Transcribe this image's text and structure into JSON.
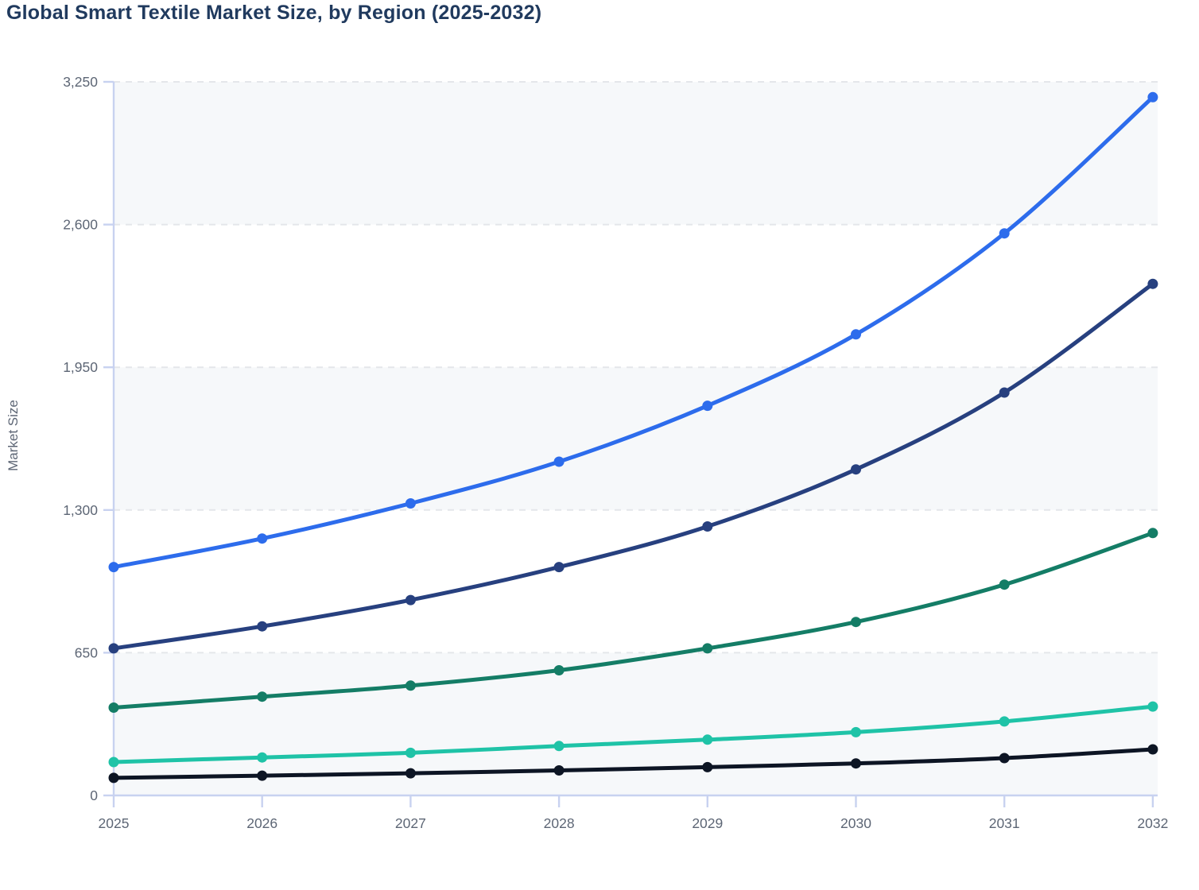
{
  "chart": {
    "title": "Global Smart Textile Market Size, by Region (2025-2032)",
    "y_axis_title": "Market Size"
  },
  "chart_data": {
    "type": "line",
    "title": "Global Smart Textile Market Size, by Region (2025-2032)",
    "xlabel": "",
    "ylabel": "Market Size",
    "x": [
      2025,
      2026,
      2027,
      2028,
      2029,
      2030,
      2031,
      2032
    ],
    "x_tick_labels": [
      "2025",
      "2026",
      "2027",
      "2028",
      "2029",
      "2030",
      "2031",
      "2032"
    ],
    "y_ticks": [
      0,
      650,
      1300,
      1950,
      2600,
      3250
    ],
    "y_tick_labels": [
      "0",
      "650",
      "1,300",
      "1,950",
      "2,600",
      "3,250"
    ],
    "ylim": [
      0,
      3250
    ],
    "grid": "horizontal dashed gridlines at each y tick",
    "legend_position": "none visible",
    "alternating_shaded_bands": [
      [
        0,
        650
      ],
      [
        1300,
        1950
      ],
      [
        2600,
        3250
      ]
    ],
    "series": [
      {
        "name": "series-1-bright-blue",
        "color": "#2d6cec",
        "values": [
          1040,
          1170,
          1330,
          1520,
          1775,
          2100,
          2560,
          3180
        ]
      },
      {
        "name": "series-2-navy",
        "color": "#27407f",
        "values": [
          670,
          770,
          890,
          1040,
          1225,
          1485,
          1835,
          2330
        ]
      },
      {
        "name": "series-3-dark-green",
        "color": "#147d66",
        "values": [
          400,
          450,
          500,
          570,
          670,
          790,
          960,
          1195
        ]
      },
      {
        "name": "series-4-teal",
        "color": "#1fc3a7",
        "values": [
          152,
          173,
          194,
          225,
          254,
          288,
          337,
          405
        ]
      },
      {
        "name": "series-5-black",
        "color": "#0d1524",
        "values": [
          80,
          90,
          101,
          114,
          129,
          146,
          170,
          210
        ]
      }
    ]
  },
  "style": {
    "title_color": "#203a5e",
    "tick_label_color": "#5d6675",
    "axis_line_color": "#c8d2f0",
    "gridline_color": "#e4e6ea",
    "band_fill_color": "#f6f8fa",
    "background_color": "#ffffff"
  }
}
